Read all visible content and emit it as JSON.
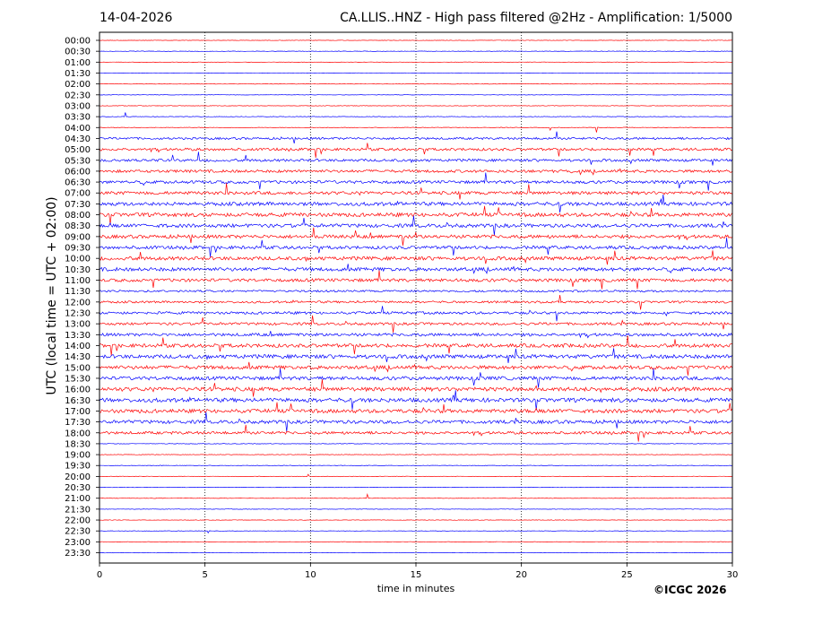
{
  "header": {
    "date": "14-04-2026",
    "title": "CA.LLIS..HNZ - High pass filtered @2Hz - Amplification: 1/5000"
  },
  "footer": {
    "copyright": "©ICGC 2026"
  },
  "chart_data": {
    "type": "line",
    "xlabel": "time in minutes",
    "ylabel": "UTC (local time = UTC + 02:00)",
    "xlim": [
      0,
      30
    ],
    "x_ticks": [
      0,
      5,
      10,
      15,
      20,
      25,
      30
    ],
    "grid": "vertical dotted lines at 5-minute ticks",
    "series_colors": [
      "#ff0000",
      "#0000ff"
    ],
    "rows": [
      {
        "label": "00:00",
        "activity": 0.02
      },
      {
        "label": "00:30",
        "activity": 0.02
      },
      {
        "label": "01:00",
        "activity": 0.02
      },
      {
        "label": "01:30",
        "activity": 0.02
      },
      {
        "label": "02:00",
        "activity": 0.03
      },
      {
        "label": "02:30",
        "activity": 0.02
      },
      {
        "label": "03:00",
        "activity": 0.04
      },
      {
        "label": "03:30",
        "activity": 0.04
      },
      {
        "label": "04:00",
        "activity": 0.06
      },
      {
        "label": "04:30",
        "activity": 0.45
      },
      {
        "label": "05:00",
        "activity": 0.55
      },
      {
        "label": "05:30",
        "activity": 0.55
      },
      {
        "label": "06:00",
        "activity": 0.6
      },
      {
        "label": "06:30",
        "activity": 0.65
      },
      {
        "label": "07:00",
        "activity": 0.7
      },
      {
        "label": "07:30",
        "activity": 0.8
      },
      {
        "label": "08:00",
        "activity": 0.85
      },
      {
        "label": "08:30",
        "activity": 0.8
      },
      {
        "label": "09:00",
        "activity": 0.75
      },
      {
        "label": "09:30",
        "activity": 0.7
      },
      {
        "label": "10:00",
        "activity": 0.8
      },
      {
        "label": "10:30",
        "activity": 0.8
      },
      {
        "label": "11:00",
        "activity": 0.7
      },
      {
        "label": "11:30",
        "activity": 0.4
      },
      {
        "label": "12:00",
        "activity": 0.45
      },
      {
        "label": "12:30",
        "activity": 0.55
      },
      {
        "label": "13:00",
        "activity": 0.55
      },
      {
        "label": "13:30",
        "activity": 0.65
      },
      {
        "label": "14:00",
        "activity": 0.8
      },
      {
        "label": "14:30",
        "activity": 0.85
      },
      {
        "label": "15:00",
        "activity": 0.8
      },
      {
        "label": "15:30",
        "activity": 0.8
      },
      {
        "label": "16:00",
        "activity": 0.9
      },
      {
        "label": "16:30",
        "activity": 0.9
      },
      {
        "label": "17:00",
        "activity": 0.85
      },
      {
        "label": "17:30",
        "activity": 0.75
      },
      {
        "label": "18:00",
        "activity": 0.6
      },
      {
        "label": "18:30",
        "activity": 0.05
      },
      {
        "label": "19:00",
        "activity": 0.04
      },
      {
        "label": "19:30",
        "activity": 0.04
      },
      {
        "label": "20:00",
        "activity": 0.04
      },
      {
        "label": "20:30",
        "activity": 0.02
      },
      {
        "label": "21:00",
        "activity": 0.02
      },
      {
        "label": "21:30",
        "activity": 0.02
      },
      {
        "label": "22:00",
        "activity": 0.02
      },
      {
        "label": "22:30",
        "activity": 0.02
      },
      {
        "label": "23:00",
        "activity": 0.02
      },
      {
        "label": "23:30",
        "activity": 0.02
      }
    ]
  }
}
